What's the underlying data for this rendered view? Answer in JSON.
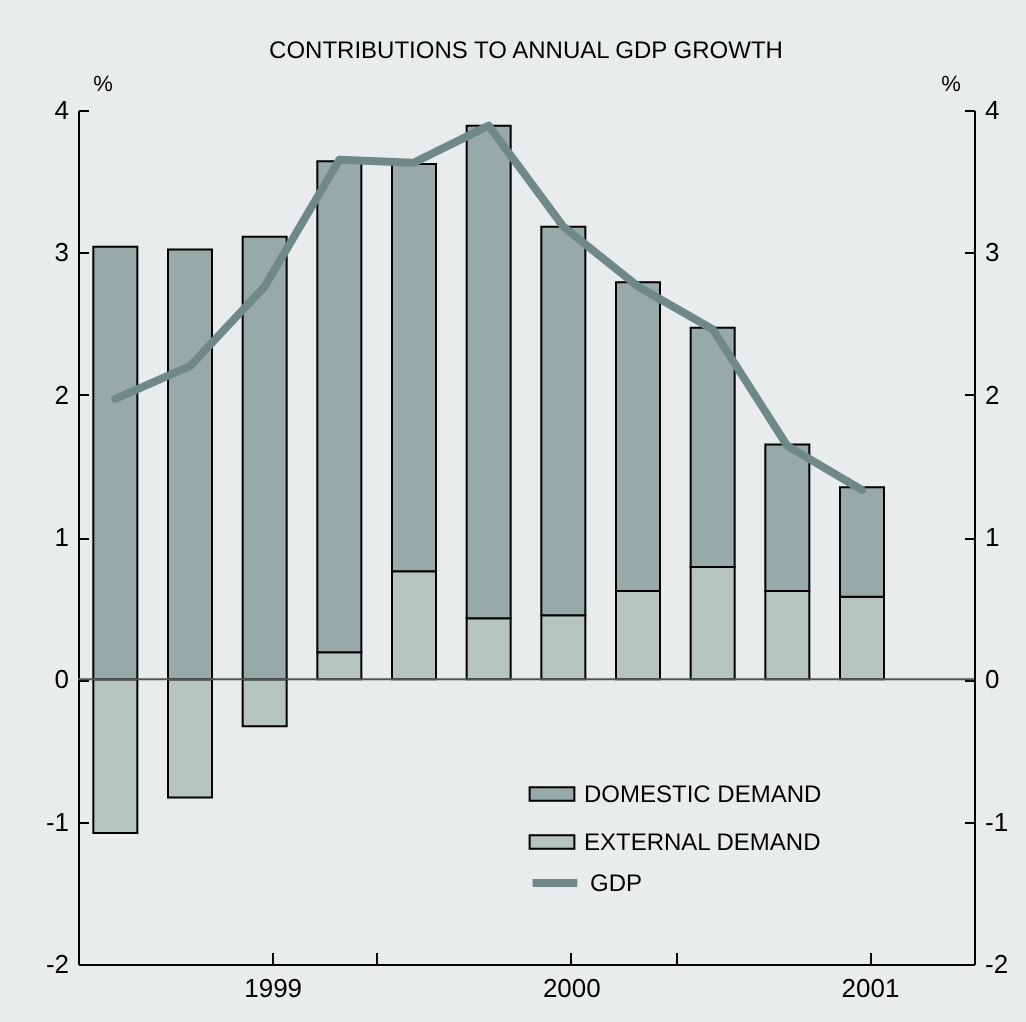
{
  "chart_data": {
    "type": "bar",
    "title": "CONTRIBUTIONS TO ANNUAL GDP GROWTH",
    "ylabel": "%",
    "y2label": "%",
    "x": [
      1998.475,
      1998.725,
      1998.975,
      1999.225,
      1999.475,
      1999.725,
      1999.975,
      2000.225,
      2000.475,
      2000.725,
      2000.975
    ],
    "stacked": true,
    "series": [
      {
        "name": "EXTERNAL DEMAND",
        "color": "#b5c3c1",
        "values": [
          -1.08,
          -0.83,
          -0.33,
          0.19,
          0.76,
          0.43,
          0.45,
          0.62,
          0.79,
          0.62,
          0.58
        ]
      },
      {
        "name": "DOMESTIC DEMAND",
        "color": "#97aaa8",
        "values": [
          3.04,
          3.02,
          3.11,
          3.45,
          2.86,
          3.46,
          2.73,
          2.17,
          1.68,
          1.03,
          0.77
        ]
      },
      {
        "name": "GDP",
        "type": "line",
        "color": "#6f8a86",
        "values": [
          1.97,
          2.2,
          2.76,
          3.65,
          3.63,
          3.89,
          3.18,
          2.76,
          2.46,
          1.64,
          1.33
        ]
      }
    ],
    "xlim": [
      1998.35,
      2001.35
    ],
    "xticks": [
      1999,
      {
        "value": 1999.35,
        "label": null
      },
      2000,
      {
        "value": 2000.35,
        "label": null
      },
      2001
    ],
    "ylim": [
      -2,
      4
    ],
    "yticks": [
      -2,
      -1,
      0,
      1,
      2,
      3,
      4
    ],
    "y2lim": [
      -2,
      4
    ],
    "y2ticks": [
      -2,
      -1,
      0,
      1,
      2,
      3,
      4
    ],
    "ref_lines": [
      {
        "axis": "y",
        "value": 0,
        "color": "#555555"
      }
    ],
    "legend": "bottom right",
    "grid": false
  }
}
